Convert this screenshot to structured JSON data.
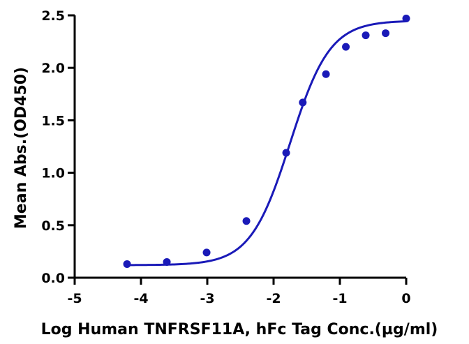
{
  "chart_data": {
    "type": "scatter",
    "title": "",
    "xlabel": "Log Human TNFRSF11A, hFc Tag Conc.(µg/ml)",
    "ylabel": "Mean Abs.(OD450)",
    "xlim": [
      -5,
      0
    ],
    "ylim": [
      0,
      2.5
    ],
    "xticks": [
      -5,
      -4,
      -3,
      -2,
      -1,
      0
    ],
    "xtick_labels": [
      "-5",
      "-4",
      "-3",
      "-2",
      "-1",
      "0"
    ],
    "yticks": [
      0,
      0.5,
      1.0,
      1.5,
      2.0,
      2.5
    ],
    "ytick_labels": [
      "0.0",
      "0.5",
      "1.0",
      "1.5",
      "2.0",
      "2.5"
    ],
    "grid": false,
    "legend": "none",
    "color": "#1a1ab8",
    "series": [
      {
        "x": [
          -4.21,
          -3.61,
          -3.01,
          -2.41,
          -1.81,
          -1.56,
          -1.21,
          -0.91,
          -0.61,
          -0.31,
          0.0
        ],
        "y": [
          0.13,
          0.15,
          0.24,
          0.54,
          1.19,
          1.67,
          1.94,
          2.2,
          2.31,
          2.33,
          2.47
        ]
      }
    ],
    "fit_curve": {
      "model": "4PL",
      "bottom": 0.12,
      "top": 2.45,
      "log_ec50": -1.75,
      "hill": 1.45
    }
  }
}
